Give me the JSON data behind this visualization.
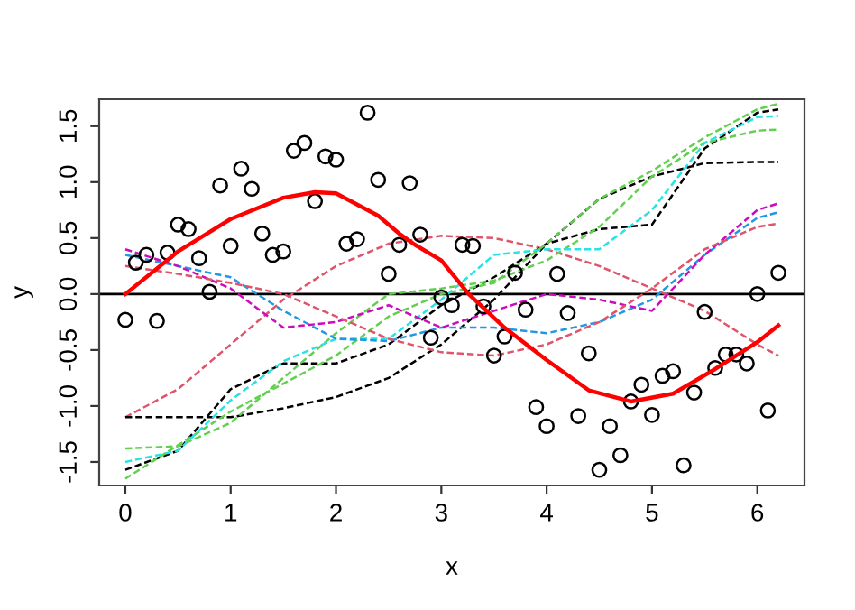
{
  "chart_data": {
    "type": "scatter",
    "xlabel": "x",
    "ylabel": "y",
    "xlim": [
      -0.248,
      6.448
    ],
    "ylim": [
      -1.71,
      1.74
    ],
    "xticks": [
      0,
      1,
      2,
      3,
      4,
      5,
      6
    ],
    "yticks": [
      -1.5,
      {
        "value": -1,
        "label": "-1.0"
      },
      -0.5,
      {
        "value": 0,
        "label": "0.0"
      },
      0.5,
      {
        "value": 1,
        "label": "1.0"
      },
      1.5
    ],
    "grid": false,
    "legend": false,
    "ref_lines": [
      {
        "axis": "y",
        "value": 0,
        "color": "#000000",
        "line_style": "solid"
      }
    ],
    "series": [
      {
        "color": "#000000",
        "marker": "circle",
        "x": [
          0,
          0.1,
          0.2,
          0.3,
          0.4,
          0.5,
          0.6,
          0.7,
          0.8,
          0.9,
          1.0,
          1.1,
          1.2,
          1.3,
          1.4,
          1.5,
          1.6,
          1.7,
          1.8,
          1.9,
          2.0,
          2.1,
          2.2,
          2.3,
          2.4,
          2.5,
          2.6,
          2.7,
          2.8,
          2.9,
          3.0,
          3.1,
          3.2,
          3.3,
          3.4,
          3.5,
          3.6,
          3.7,
          3.8,
          3.9,
          4.0,
          4.1,
          4.2,
          4.3,
          4.4,
          4.5,
          4.6,
          4.7,
          4.8,
          4.9,
          5.0,
          5.1,
          5.2,
          5.3,
          5.4,
          5.5,
          5.6,
          5.7,
          5.8,
          5.9,
          6.0,
          6.1,
          6.2
        ],
        "values": [
          -0.23,
          0.28,
          0.35,
          -0.24,
          0.37,
          0.62,
          0.58,
          0.32,
          0.02,
          0.97,
          0.43,
          1.12,
          0.94,
          0.54,
          0.35,
          0.38,
          1.28,
          1.35,
          0.83,
          1.23,
          1.2,
          0.45,
          0.49,
          1.62,
          1.02,
          0.18,
          0.44,
          0.99,
          0.53,
          -0.39,
          -0.03,
          -0.1,
          0.44,
          0.43,
          -0.11,
          -0.55,
          -0.38,
          0.19,
          -0.14,
          -1.01,
          -1.18,
          0.18,
          -0.17,
          -1.09,
          -0.53,
          -1.57,
          -1.18,
          -1.44,
          -0.96,
          -0.81,
          -1.08,
          -0.73,
          -0.69,
          -1.53,
          -0.88,
          -0.16,
          -0.66,
          -0.54,
          -0.54,
          -0.62,
          0.0,
          -1.04,
          0.19
        ]
      },
      {
        "type": "line",
        "color": "#DF536B",
        "line_style": "dashed",
        "marker": "none",
        "x": [
          0,
          0.5,
          1,
          1.5,
          2,
          2.5,
          3,
          3.5,
          4,
          4.5,
          5,
          5.5,
          6,
          6.2
        ],
        "values": [
          -1.1,
          -0.85,
          -0.45,
          -0.05,
          0.25,
          0.45,
          0.52,
          0.5,
          0.4,
          0.25,
          0.05,
          -0.15,
          -0.45,
          -0.55
        ]
      },
      {
        "type": "line",
        "color": "#000000",
        "line_style": "dashed",
        "marker": "none",
        "x": [
          0,
          0.5,
          1,
          1.5,
          2,
          2.5,
          3,
          3.5,
          4,
          4.5,
          5,
          5.5,
          6,
          6.2
        ],
        "values": [
          -1.1,
          -1.1,
          -1.1,
          -1.02,
          -0.92,
          -0.75,
          -0.45,
          -0.05,
          0.45,
          0.85,
          1.05,
          1.17,
          1.18,
          1.18
        ]
      },
      {
        "type": "line",
        "color": "#000000",
        "line_style": "dashed",
        "marker": "none",
        "x": [
          0,
          0.5,
          1,
          1.5,
          2,
          2.5,
          3,
          3.5,
          4,
          4.5,
          5,
          5.5,
          6,
          6.2
        ],
        "values": [
          -1.57,
          -1.4,
          -0.85,
          -0.62,
          -0.62,
          -0.45,
          -0.1,
          0.15,
          0.45,
          0.58,
          0.62,
          1.3,
          1.62,
          1.65
        ]
      },
      {
        "type": "line",
        "color": "#61D04F",
        "line_style": "dashed",
        "marker": "none",
        "x": [
          0,
          0.5,
          1,
          1.5,
          2,
          2.5,
          3,
          3.5,
          4,
          4.5,
          5,
          5.5,
          6,
          6.2
        ],
        "values": [
          -1.65,
          -1.35,
          -1.05,
          -0.8,
          -0.55,
          -0.2,
          0.0,
          0.1,
          0.45,
          0.85,
          1.1,
          1.4,
          1.65,
          1.7
        ]
      },
      {
        "type": "line",
        "color": "#61D04F",
        "line_style": "dashed",
        "marker": "none",
        "x": [
          0,
          0.5,
          1,
          1.5,
          2,
          2.5,
          3,
          3.5,
          4,
          4.5,
          5,
          5.5,
          6,
          6.2
        ],
        "values": [
          -1.38,
          -1.36,
          -1.15,
          -0.75,
          -0.35,
          0.0,
          0.05,
          0.12,
          0.3,
          0.6,
          1.05,
          1.35,
          1.46,
          1.47
        ]
      },
      {
        "type": "line",
        "color": "#28E2E5",
        "line_style": "dashed",
        "marker": "none",
        "x": [
          0,
          0.5,
          1,
          1.5,
          2,
          2.5,
          3,
          3.5,
          4,
          4.5,
          5,
          5.5,
          6,
          6.2
        ],
        "values": [
          -1.5,
          -1.4,
          -0.95,
          -0.6,
          -0.4,
          -0.4,
          -0.05,
          0.35,
          0.4,
          0.4,
          0.75,
          1.35,
          1.58,
          1.59
        ]
      },
      {
        "type": "line",
        "color": "#2297E6",
        "line_style": "dashed",
        "marker": "none",
        "x": [
          0,
          0.5,
          1,
          1.5,
          2,
          2.5,
          3,
          3.5,
          4,
          4.5,
          5,
          5.5,
          6,
          6.2
        ],
        "values": [
          0.35,
          0.25,
          0.15,
          -0.15,
          -0.4,
          -0.42,
          -0.3,
          -0.3,
          -0.35,
          -0.25,
          -0.05,
          0.35,
          0.68,
          0.73
        ]
      },
      {
        "type": "line",
        "color": "#CD0BBC",
        "line_style": "dashed",
        "marker": "none",
        "x": [
          0,
          0.5,
          1,
          1.5,
          2,
          2.5,
          3,
          3.5,
          4,
          4.5,
          5,
          5.5,
          6,
          6.2
        ],
        "values": [
          0.4,
          0.25,
          0.05,
          -0.3,
          -0.25,
          -0.1,
          -0.3,
          -0.15,
          0.0,
          -0.05,
          -0.15,
          0.35,
          0.75,
          0.81
        ]
      },
      {
        "type": "line",
        "color": "#DF536B",
        "line_style": "dashed",
        "marker": "none",
        "x": [
          0,
          0.5,
          1,
          1.5,
          2,
          2.5,
          3,
          3.5,
          4,
          4.5,
          5,
          5.5,
          6,
          6.2
        ],
        "values": [
          0.25,
          0.18,
          0.1,
          0.0,
          -0.2,
          -0.4,
          -0.52,
          -0.55,
          -0.45,
          -0.25,
          0.05,
          0.4,
          0.6,
          0.63
        ]
      },
      {
        "type": "line",
        "color": "#FF0000",
        "line_style": "solid",
        "marker": "none",
        "x": [
          0,
          0.5,
          1,
          1.5,
          1.8,
          2,
          2.4,
          2.6,
          2.75,
          3,
          3.26,
          3.6,
          4,
          4.4,
          4.8,
          5.2,
          5.6,
          6,
          6.2
        ],
        "values": [
          0,
          0.38,
          0.67,
          0.86,
          0.91,
          0.9,
          0.7,
          0.54,
          0.44,
          0.3,
          0,
          -0.3,
          -0.59,
          -0.86,
          -0.96,
          -0.89,
          -0.67,
          -0.43,
          -0.28
        ]
      }
    ]
  }
}
